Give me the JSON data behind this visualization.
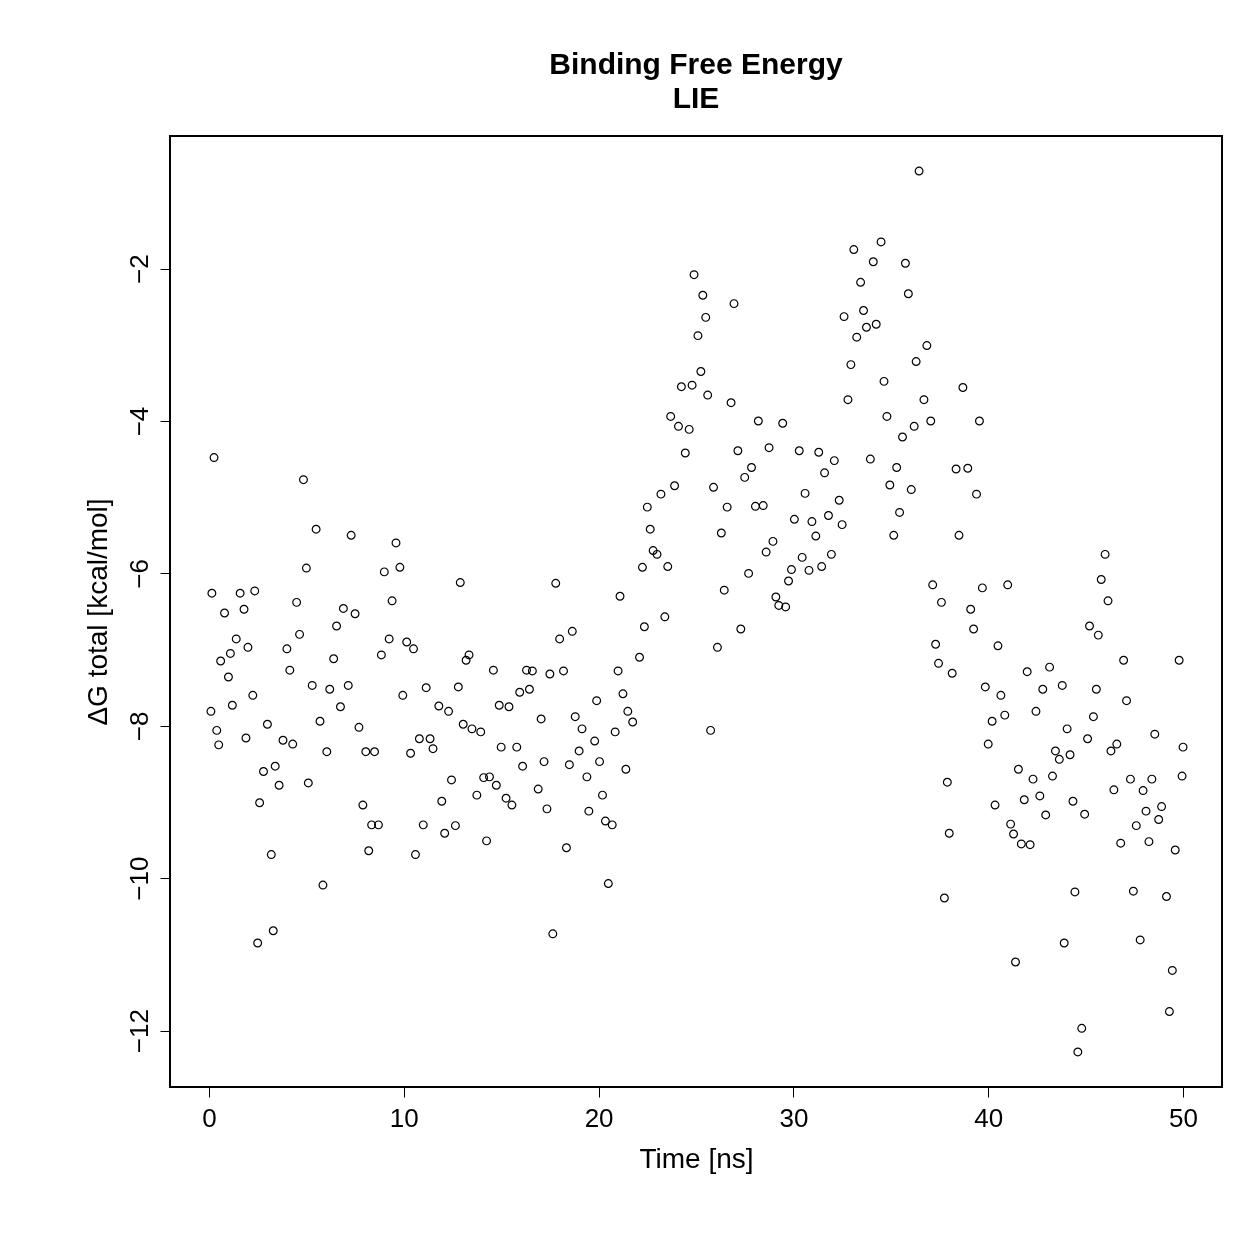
{
  "chart_data": {
    "type": "scatter",
    "title": "Binding Free Energy",
    "subtitle": "LIE",
    "xlabel": "Time [ns]",
    "ylabel": "ΔG total [kcal/mol]",
    "xlim": [
      -2,
      52
    ],
    "ylim": [
      -12.74,
      -0.26
    ],
    "xticks": [
      0,
      10,
      20,
      30,
      40,
      50
    ],
    "yticks": [
      -12,
      -10,
      -8,
      -6,
      -4,
      -2
    ],
    "grid": false,
    "marker": "circle",
    "series": [
      {
        "color": "#000000",
        "x": [
          0.1,
          0.26,
          0.15,
          0.4,
          0.5,
          0.6,
          0.8,
          1.0,
          1.1,
          1.2,
          1.4,
          1.6,
          1.8,
          1.9,
          2.0,
          2.25,
          2.35,
          2.5,
          2.6,
          2.8,
          3.0,
          3.2,
          3.3,
          3.4,
          3.6,
          3.8,
          4.0,
          4.15,
          4.3,
          4.5,
          4.65,
          4.85,
          5.0,
          5.1,
          5.3,
          5.5,
          5.7,
          5.85,
          6.05,
          6.2,
          6.4,
          6.55,
          6.75,
          6.9,
          7.15,
          7.3,
          7.5,
          7.7,
          7.9,
          8.05,
          8.2,
          8.35,
          8.5,
          8.7,
          8.85,
          9.0,
          9.25,
          9.4,
          9.6,
          9.8,
          9.95,
          10.15,
          10.35,
          10.5,
          10.6,
          10.8,
          11.0,
          11.15,
          11.35,
          11.5,
          11.8,
          11.95,
          12.1,
          12.3,
          12.45,
          12.65,
          12.8,
          12.9,
          13.05,
          13.2,
          13.35,
          13.5,
          13.75,
          13.95,
          14.1,
          14.25,
          14.4,
          14.6,
          14.75,
          14.9,
          15.0,
          15.25,
          15.4,
          15.55,
          15.8,
          15.95,
          16.1,
          16.3,
          16.45,
          16.6,
          16.9,
          17.05,
          17.2,
          17.35,
          17.5,
          17.65,
          17.8,
          18.0,
          18.2,
          18.35,
          18.5,
          18.65,
          18.8,
          19.0,
          19.15,
          19.4,
          19.5,
          19.8,
          19.9,
          20.05,
          20.2,
          20.35,
          20.5,
          20.7,
          20.85,
          21.0,
          21.1,
          21.25,
          21.4,
          21.5,
          21.75,
          22.1,
          22.25,
          22.35,
          22.5,
          22.65,
          22.8,
          23.0,
          23.2,
          23.4,
          23.55,
          23.7,
          23.9,
          24.1,
          24.25,
          24.45,
          24.65,
          24.8,
          24.9,
          25.1,
          25.25,
          25.35,
          25.5,
          25.6,
          25.75,
          25.9,
          26.1,
          26.3,
          26.45,
          26.6,
          26.8,
          26.95,
          27.15,
          27.3,
          27.5,
          27.7,
          27.85,
          28.05,
          28.2,
          28.45,
          28.6,
          28.75,
          28.95,
          29.1,
          29.25,
          29.45,
          29.6,
          29.75,
          29.9,
          30.05,
          30.3,
          30.45,
          30.6,
          30.8,
          30.95,
          31.15,
          31.3,
          31.45,
          31.6,
          31.8,
          31.95,
          32.1,
          32.35,
          32.5,
          32.6,
          32.8,
          32.95,
          33.1,
          33.25,
          33.45,
          33.6,
          33.75,
          33.95,
          34.1,
          34.25,
          34.5,
          34.65,
          34.8,
          34.95,
          35.15,
          35.3,
          35.45,
          35.6,
          35.75,
          35.9,
          36.05,
          36.2,
          36.3,
          36.45,
          36.7,
          36.85,
          37.05,
          37.15,
          37.3,
          37.45,
          37.6,
          37.75,
          37.9,
          38.0,
          38.15,
          38.35,
          38.5,
          38.7,
          38.95,
          39.1,
          39.25,
          39.4,
          39.55,
          39.7,
          39.85,
          40.0,
          40.2,
          40.35,
          40.5,
          40.65,
          40.85,
          41.0,
          41.15,
          41.3,
          41.4,
          41.55,
          41.7,
          41.85,
          42.0,
          42.15,
          42.3,
          42.45,
          42.65,
          42.8,
          42.95,
          43.15,
          43.3,
          43.45,
          43.65,
          43.8,
          43.9,
          44.05,
          44.2,
          44.35,
          44.45,
          44.6,
          44.8,
          44.95,
          45.1,
          45.2,
          45.4,
          45.55,
          45.65,
          45.8,
          46.0,
          46.15,
          46.3,
          46.45,
          46.6,
          46.8,
          46.95,
          47.1,
          47.3,
          47.45,
          47.6,
          47.8,
          47.95,
          48.1,
          48.25,
          48.4,
          48.55,
          48.75,
          48.9,
          49.15,
          49.3,
          49.45,
          49.6,
          49.8,
          49.95,
          50.0
        ],
        "values": [
          -7.81,
          -4.48,
          -6.26,
          -8.06,
          -8.25,
          -7.15,
          -6.52,
          -7.36,
          -7.05,
          -7.73,
          -6.86,
          -6.26,
          -6.47,
          -8.16,
          -6.97,
          -7.6,
          -6.23,
          -10.85,
          -9.01,
          -8.6,
          -7.98,
          -9.69,
          -10.69,
          -8.53,
          -8.78,
          -8.19,
          -6.99,
          -7.27,
          -8.24,
          -6.38,
          -6.8,
          -4.77,
          -5.93,
          -8.75,
          -7.47,
          -5.42,
          -7.94,
          -10.09,
          -8.34,
          -7.52,
          -7.12,
          -6.69,
          -7.75,
          -6.46,
          -7.47,
          -5.5,
          -6.53,
          -8.02,
          -9.04,
          -8.34,
          -9.64,
          -9.3,
          -8.34,
          -9.3,
          -7.07,
          -5.98,
          -6.86,
          -6.36,
          -5.6,
          -5.92,
          -7.6,
          -6.9,
          -8.36,
          -6.99,
          -9.69,
          -8.17,
          -9.3,
          -7.5,
          -8.17,
          -8.3,
          -7.74,
          -8.99,
          -9.41,
          -7.81,
          -8.71,
          -9.31,
          -7.49,
          -6.12,
          -7.98,
          -7.14,
          -7.07,
          -8.04,
          -8.91,
          -8.08,
          -8.68,
          -9.51,
          -8.67,
          -7.27,
          -8.78,
          -7.73,
          -8.28,
          -8.95,
          -7.75,
          -9.04,
          -8.28,
          -7.56,
          -8.53,
          -7.27,
          -7.52,
          -7.28,
          -8.83,
          -7.91,
          -8.47,
          -9.09,
          -7.32,
          -10.73,
          -6.13,
          -6.86,
          -7.28,
          -9.6,
          -8.51,
          -6.76,
          -7.88,
          -8.33,
          -8.04,
          -8.67,
          -9.12,
          -8.2,
          -7.67,
          -8.47,
          -8.91,
          -9.25,
          -10.07,
          -9.3,
          -8.08,
          -7.28,
          -6.3,
          -7.58,
          -8.57,
          -7.81,
          -7.95,
          -7.1,
          -5.92,
          -6.7,
          -5.13,
          -5.42,
          -5.7,
          -5.75,
          -4.96,
          -6.57,
          -5.91,
          -3.94,
          -4.85,
          -4.07,
          -3.55,
          -4.42,
          -4.11,
          -3.53,
          -2.08,
          -2.88,
          -3.35,
          -2.35,
          -2.64,
          -3.66,
          -8.06,
          -4.87,
          -6.97,
          -5.47,
          -6.22,
          -5.13,
          -3.76,
          -2.46,
          -4.39,
          -6.73,
          -4.74,
          -6.0,
          -4.61,
          -5.12,
          -4.0,
          -5.11,
          -5.72,
          -4.35,
          -5.58,
          -6.31,
          -6.42,
          -4.03,
          -6.44,
          -6.1,
          -5.95,
          -5.29,
          -4.39,
          -5.79,
          -4.95,
          -5.96,
          -5.32,
          -5.51,
          -4.41,
          -5.91,
          -4.68,
          -5.24,
          -5.75,
          -4.52,
          -5.04,
          -5.36,
          -2.63,
          -3.72,
          -3.26,
          -1.75,
          -2.9,
          -2.18,
          -2.55,
          -2.77,
          -4.5,
          -1.91,
          -2.73,
          -1.65,
          -3.48,
          -3.94,
          -4.84,
          -5.5,
          -4.61,
          -5.2,
          -4.21,
          -1.93,
          -2.33,
          -4.9,
          -4.07,
          -3.22,
          -0.72,
          -3.72,
          -3.01,
          -4.0,
          -6.15,
          -6.93,
          -7.18,
          -6.38,
          -10.26,
          -8.74,
          -9.41,
          -7.31,
          -4.63,
          -5.5,
          -3.56,
          -4.62,
          -6.47,
          -6.73,
          -4.96,
          -4.0,
          -6.19,
          -7.49,
          -8.24,
          -7.94,
          -9.04,
          -6.95,
          -7.6,
          -7.86,
          -6.15,
          -9.29,
          -9.42,
          -11.1,
          -8.57,
          -9.55,
          -8.97,
          -7.29,
          -9.56,
          -8.7,
          -7.81,
          -8.92,
          -7.52,
          -9.17,
          -7.23,
          -8.66,
          -8.33,
          -8.44,
          -7.47,
          -10.85,
          -8.04,
          -8.38,
          -8.99,
          -10.18,
          -12.28,
          -11.97,
          -9.16,
          -8.17,
          -6.69,
          -7.88,
          -7.52,
          -6.81,
          -6.08,
          -5.75,
          -6.36,
          -8.33,
          -8.84,
          -8.24,
          -9.54,
          -7.14,
          -7.67,
          -8.7,
          -10.17,
          -9.31,
          -10.81,
          -8.85,
          -9.12,
          -9.52,
          -8.7,
          -8.11,
          -9.23,
          -9.06,
          -10.24,
          -11.75,
          -11.21,
          -9.63,
          -7.14,
          -8.66,
          -8.28
        ]
      }
    ]
  }
}
